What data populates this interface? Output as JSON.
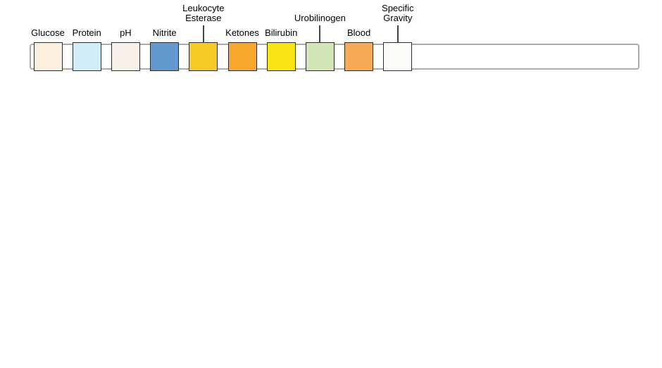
{
  "figure": {
    "type": "urine-test-strip-diagram",
    "strip": {
      "fill_color": "#ffffff",
      "border_color": "#aaaaaa"
    },
    "pad_border_color": "#2b2b2b",
    "pointer_color": "#37474f",
    "label_color": "#000000",
    "pads": [
      {
        "label": "Glucose",
        "lines": [
          "Glucose"
        ],
        "color": "#fcefe0",
        "elevated": false
      },
      {
        "label": "Protein",
        "lines": [
          "Protein"
        ],
        "color": "#d3ecf9",
        "elevated": false
      },
      {
        "label": "pH",
        "lines": [
          "pH"
        ],
        "color": "#f7f1ea",
        "elevated": false
      },
      {
        "label": "Nitrite",
        "lines": [
          "Nitrite"
        ],
        "color": "#6299ce",
        "elevated": false
      },
      {
        "label": "Leukocyte Esterase",
        "lines": [
          "Leukocyte",
          "Esterase"
        ],
        "color": "#f7cb26",
        "elevated": true
      },
      {
        "label": "Ketones",
        "lines": [
          "Ketones"
        ],
        "color": "#f8a72c",
        "elevated": false
      },
      {
        "label": "Bilirubin",
        "lines": [
          "Bilirubin"
        ],
        "color": "#f8e412",
        "elevated": false
      },
      {
        "label": "Urobilinogen",
        "lines": [
          "Urobilinogen"
        ],
        "color": "#d2e5b5",
        "elevated": true
      },
      {
        "label": "Blood",
        "lines": [
          "Blood"
        ],
        "color": "#f8a955",
        "elevated": false
      },
      {
        "label": "Specific Gravity",
        "lines": [
          "Specific",
          "Gravity"
        ],
        "color": "#fcfcf9",
        "elevated": true
      }
    ]
  }
}
